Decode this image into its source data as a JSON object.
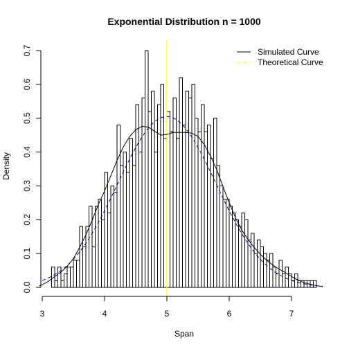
{
  "chart_data": {
    "type": "bar",
    "title": "Exponential Distribution n = 1000",
    "xlabel": "Span",
    "ylabel": "Density",
    "xlim": [
      3,
      7.5
    ],
    "ylim": [
      0,
      0.7
    ],
    "x_ticks": [
      3,
      4,
      5,
      6,
      7
    ],
    "y_ticks": [
      0.0,
      0.1,
      0.2,
      0.3,
      0.4,
      0.5,
      0.6,
      0.7
    ],
    "x_tick_labels": [
      "3",
      "4",
      "5",
      "6",
      "7"
    ],
    "y_tick_labels": [
      "0.0",
      "0.1",
      "0.2",
      "0.3",
      "0.4",
      "0.5",
      "0.6",
      "0.7"
    ],
    "histogram": {
      "bin_width": 0.05,
      "bins_start": [
        3.15,
        3.2,
        3.25,
        3.3,
        3.35,
        3.4,
        3.45,
        3.5,
        3.55,
        3.6,
        3.65,
        3.7,
        3.75,
        3.8,
        3.85,
        3.9,
        3.95,
        4.0,
        4.05,
        4.1,
        4.15,
        4.2,
        4.25,
        4.3,
        4.35,
        4.4,
        4.45,
        4.5,
        4.55,
        4.6,
        4.65,
        4.7,
        4.75,
        4.8,
        4.85,
        4.9,
        4.95,
        5.0,
        5.05,
        5.1,
        5.15,
        5.2,
        5.25,
        5.3,
        5.35,
        5.4,
        5.45,
        5.5,
        5.55,
        5.6,
        5.65,
        5.7,
        5.75,
        5.8,
        5.85,
        5.9,
        5.95,
        6.0,
        6.05,
        6.1,
        6.15,
        6.2,
        6.25,
        6.3,
        6.35,
        6.4,
        6.45,
        6.5,
        6.55,
        6.6,
        6.65,
        6.7,
        6.75,
        6.8,
        6.85,
        6.9,
        6.95,
        7.0,
        7.05,
        7.1,
        7.15,
        7.2,
        7.25,
        7.3,
        7.35
      ],
      "densities": [
        0.06,
        0.02,
        0.06,
        0.02,
        0.04,
        0.06,
        0.06,
        0.08,
        0.08,
        0.18,
        0.12,
        0.18,
        0.24,
        0.12,
        0.24,
        0.26,
        0.2,
        0.34,
        0.22,
        0.3,
        0.28,
        0.48,
        0.36,
        0.4,
        0.34,
        0.44,
        0.36,
        0.54,
        0.4,
        0.56,
        0.7,
        0.52,
        0.58,
        0.4,
        0.54,
        0.6,
        0.44,
        0.52,
        0.46,
        0.56,
        0.44,
        0.62,
        0.48,
        0.58,
        0.56,
        0.6,
        0.5,
        0.46,
        0.54,
        0.46,
        0.48,
        0.38,
        0.5,
        0.36,
        0.3,
        0.26,
        0.26,
        0.24,
        0.22,
        0.2,
        0.18,
        0.22,
        0.2,
        0.14,
        0.16,
        0.1,
        0.14,
        0.12,
        0.1,
        0.08,
        0.1,
        0.06,
        0.04,
        0.08,
        0.04,
        0.06,
        0.04,
        0.02,
        0.04,
        0.02,
        0.02,
        0.02,
        0.02,
        0.02,
        0.02
      ]
    },
    "series": [
      {
        "name": "Simulated Curve",
        "style": "solid",
        "color": "#000000",
        "x": [
          2.95,
          3.0,
          3.1,
          3.2,
          3.3,
          3.4,
          3.5,
          3.6,
          3.7,
          3.8,
          3.9,
          4.0,
          4.1,
          4.2,
          4.3,
          4.4,
          4.5,
          4.6,
          4.7,
          4.8,
          4.9,
          5.0,
          5.1,
          5.2,
          5.3,
          5.4,
          5.5,
          5.6,
          5.7,
          5.8,
          5.9,
          6.0,
          6.1,
          6.2,
          6.3,
          6.4,
          6.5,
          6.6,
          6.7,
          6.8,
          6.9,
          7.0,
          7.1,
          7.2,
          7.3,
          7.4,
          7.5
        ],
        "y": [
          0.004,
          0.008,
          0.018,
          0.032,
          0.045,
          0.062,
          0.085,
          0.118,
          0.155,
          0.198,
          0.245,
          0.285,
          0.33,
          0.375,
          0.415,
          0.445,
          0.466,
          0.476,
          0.474,
          0.462,
          0.45,
          0.452,
          0.458,
          0.458,
          0.458,
          0.456,
          0.446,
          0.422,
          0.388,
          0.348,
          0.298,
          0.25,
          0.206,
          0.17,
          0.142,
          0.118,
          0.098,
          0.08,
          0.066,
          0.054,
          0.044,
          0.032,
          0.022,
          0.014,
          0.009,
          0.005,
          0.002
        ]
      },
      {
        "name": "Theoretical Curve",
        "style": "dashed",
        "color": "#000080",
        "mean": 5,
        "sd": 0.79
      }
    ],
    "vertical_line": {
      "x": 5,
      "color": "#FFFF00"
    },
    "legend": {
      "position": "top-right",
      "labels": [
        "Simulated Curve",
        "Theoretical Curve"
      ],
      "colors": [
        "#000000",
        "#FFFF00"
      ],
      "styles": [
        "solid",
        "dashed"
      ]
    },
    "grid": false
  }
}
